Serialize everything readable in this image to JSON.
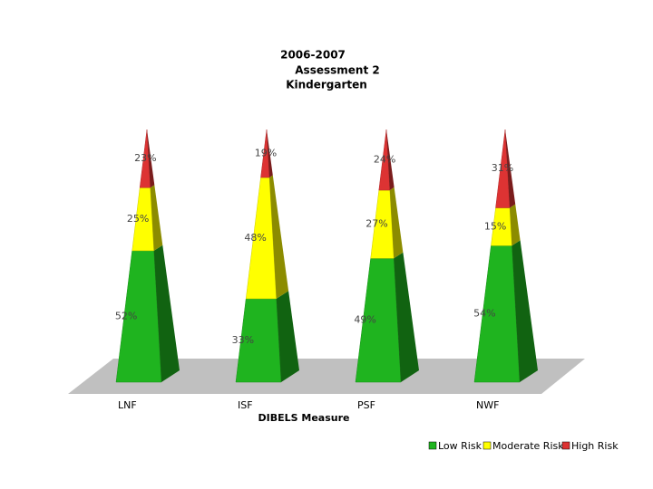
{
  "chart_data": {
    "type": "pyramid",
    "title": [
      "2006-2007",
      "Assessment 2",
      "Kindergarten"
    ],
    "x_label": "DIBELS Measure",
    "categories": [
      "LNF",
      "ISF",
      "PSF",
      "NWF"
    ],
    "series": [
      {
        "name": "Low Risk",
        "color": "#1fb41f",
        "values": [
          52,
          33,
          49,
          54
        ],
        "value_labels": [
          "52%",
          "33%",
          "49%",
          "54%"
        ]
      },
      {
        "name": "Moderate Risk",
        "color": "#ffff00",
        "values": [
          25,
          48,
          27,
          15
        ],
        "value_labels": [
          "25%",
          "48%",
          "27%",
          "15%"
        ]
      },
      {
        "name": "High Risk",
        "color": "#dd3333",
        "values": [
          23,
          19,
          24,
          31
        ],
        "value_labels": [
          "23%",
          "19%",
          "24%",
          "31%"
        ]
      }
    ],
    "legend": "bottom-right"
  }
}
